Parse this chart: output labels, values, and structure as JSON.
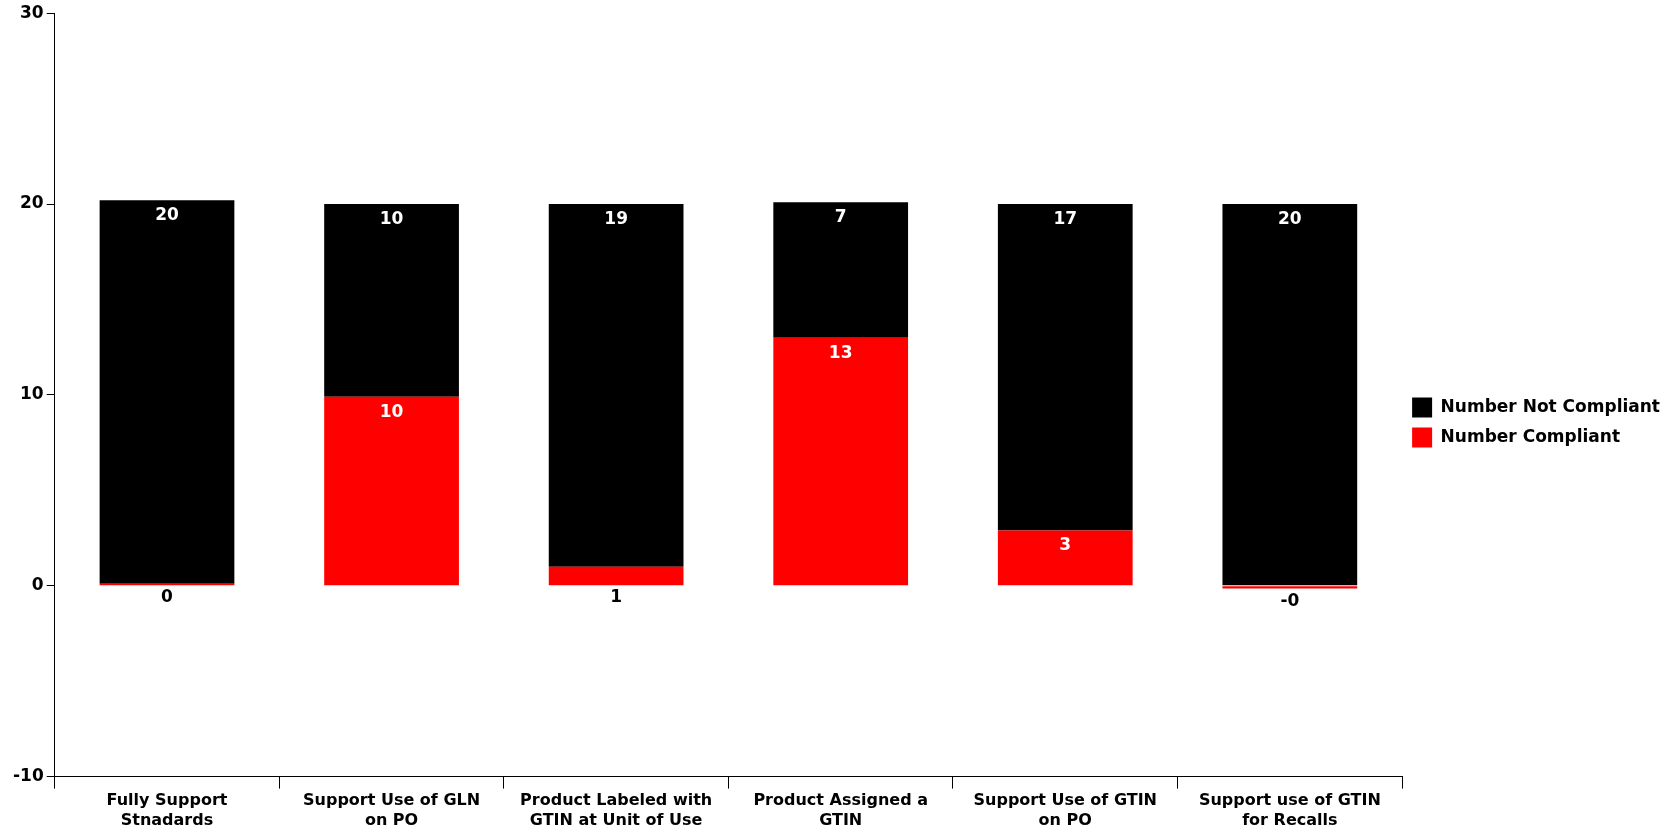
{
  "chart_data": {
    "type": "bar",
    "stacked": true,
    "categories": [
      "Fully Support Stnadards",
      "Support Use of GLN on PO",
      "Product Labeled with GTIN at Unit of Use",
      "Product Assigned a GTIN",
      "Support Use of GTIN on PO",
      "Support use of GTIN for Recalls"
    ],
    "series": [
      {
        "name": "Number Compliant",
        "color": "#ff0000",
        "values": [
          0.1,
          9.9,
          1,
          13,
          2.9,
          -0.15
        ],
        "value_labels": [
          "0",
          "10",
          "1",
          "13",
          "3",
          "-0"
        ]
      },
      {
        "name": "Number Not Compliant",
        "color": "#000000",
        "values": [
          20.1,
          10.1,
          19,
          7.1,
          17.1,
          20
        ],
        "value_labels": [
          "20",
          "10",
          "19",
          "7",
          "17",
          "20"
        ]
      }
    ],
    "ylim": [
      -10,
      30
    ],
    "yticks": [
      -10,
      0,
      10,
      20,
      30
    ],
    "grid": false,
    "legend": "right"
  }
}
